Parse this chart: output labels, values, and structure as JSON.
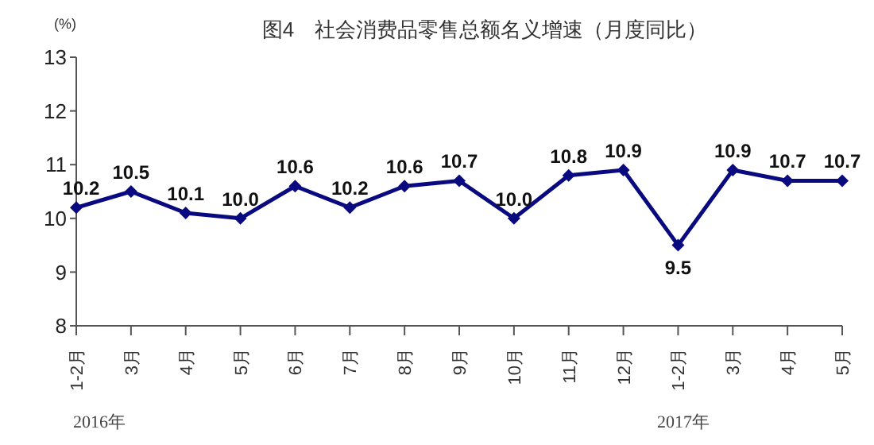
{
  "chart_data": {
    "type": "line",
    "title": "图4　社会消费品零售总额名义增速（月度同比）",
    "ylabel": "(%)",
    "categories": [
      "1-2月",
      "3月",
      "4月",
      "5月",
      "6月",
      "7月",
      "8月",
      "9月",
      "10月",
      "11月",
      "12月",
      "1-2月",
      "3月",
      "4月",
      "5月"
    ],
    "series": [
      {
        "color": "#0a0a80",
        "values": [
          10.2,
          10.5,
          10.1,
          10.0,
          10.6,
          10.2,
          10.6,
          10.7,
          10.0,
          10.8,
          10.9,
          9.5,
          10.9,
          10.7,
          10.7
        ],
        "value_labels": [
          "10.2",
          "10.5",
          "10.1",
          "10.0",
          "10.6",
          "10.2",
          "10.6",
          "10.7",
          "10.0",
          "10.8",
          "10.9",
          "9.5",
          "10.9",
          "10.7",
          "10.7"
        ]
      }
    ],
    "ylim": [
      8,
      13
    ],
    "yticks": [
      8,
      9,
      10,
      11,
      12,
      13
    ],
    "annotations": [
      "2016年",
      "2017年"
    ],
    "grid": false,
    "marker": "diamond",
    "line_style": "solid"
  }
}
